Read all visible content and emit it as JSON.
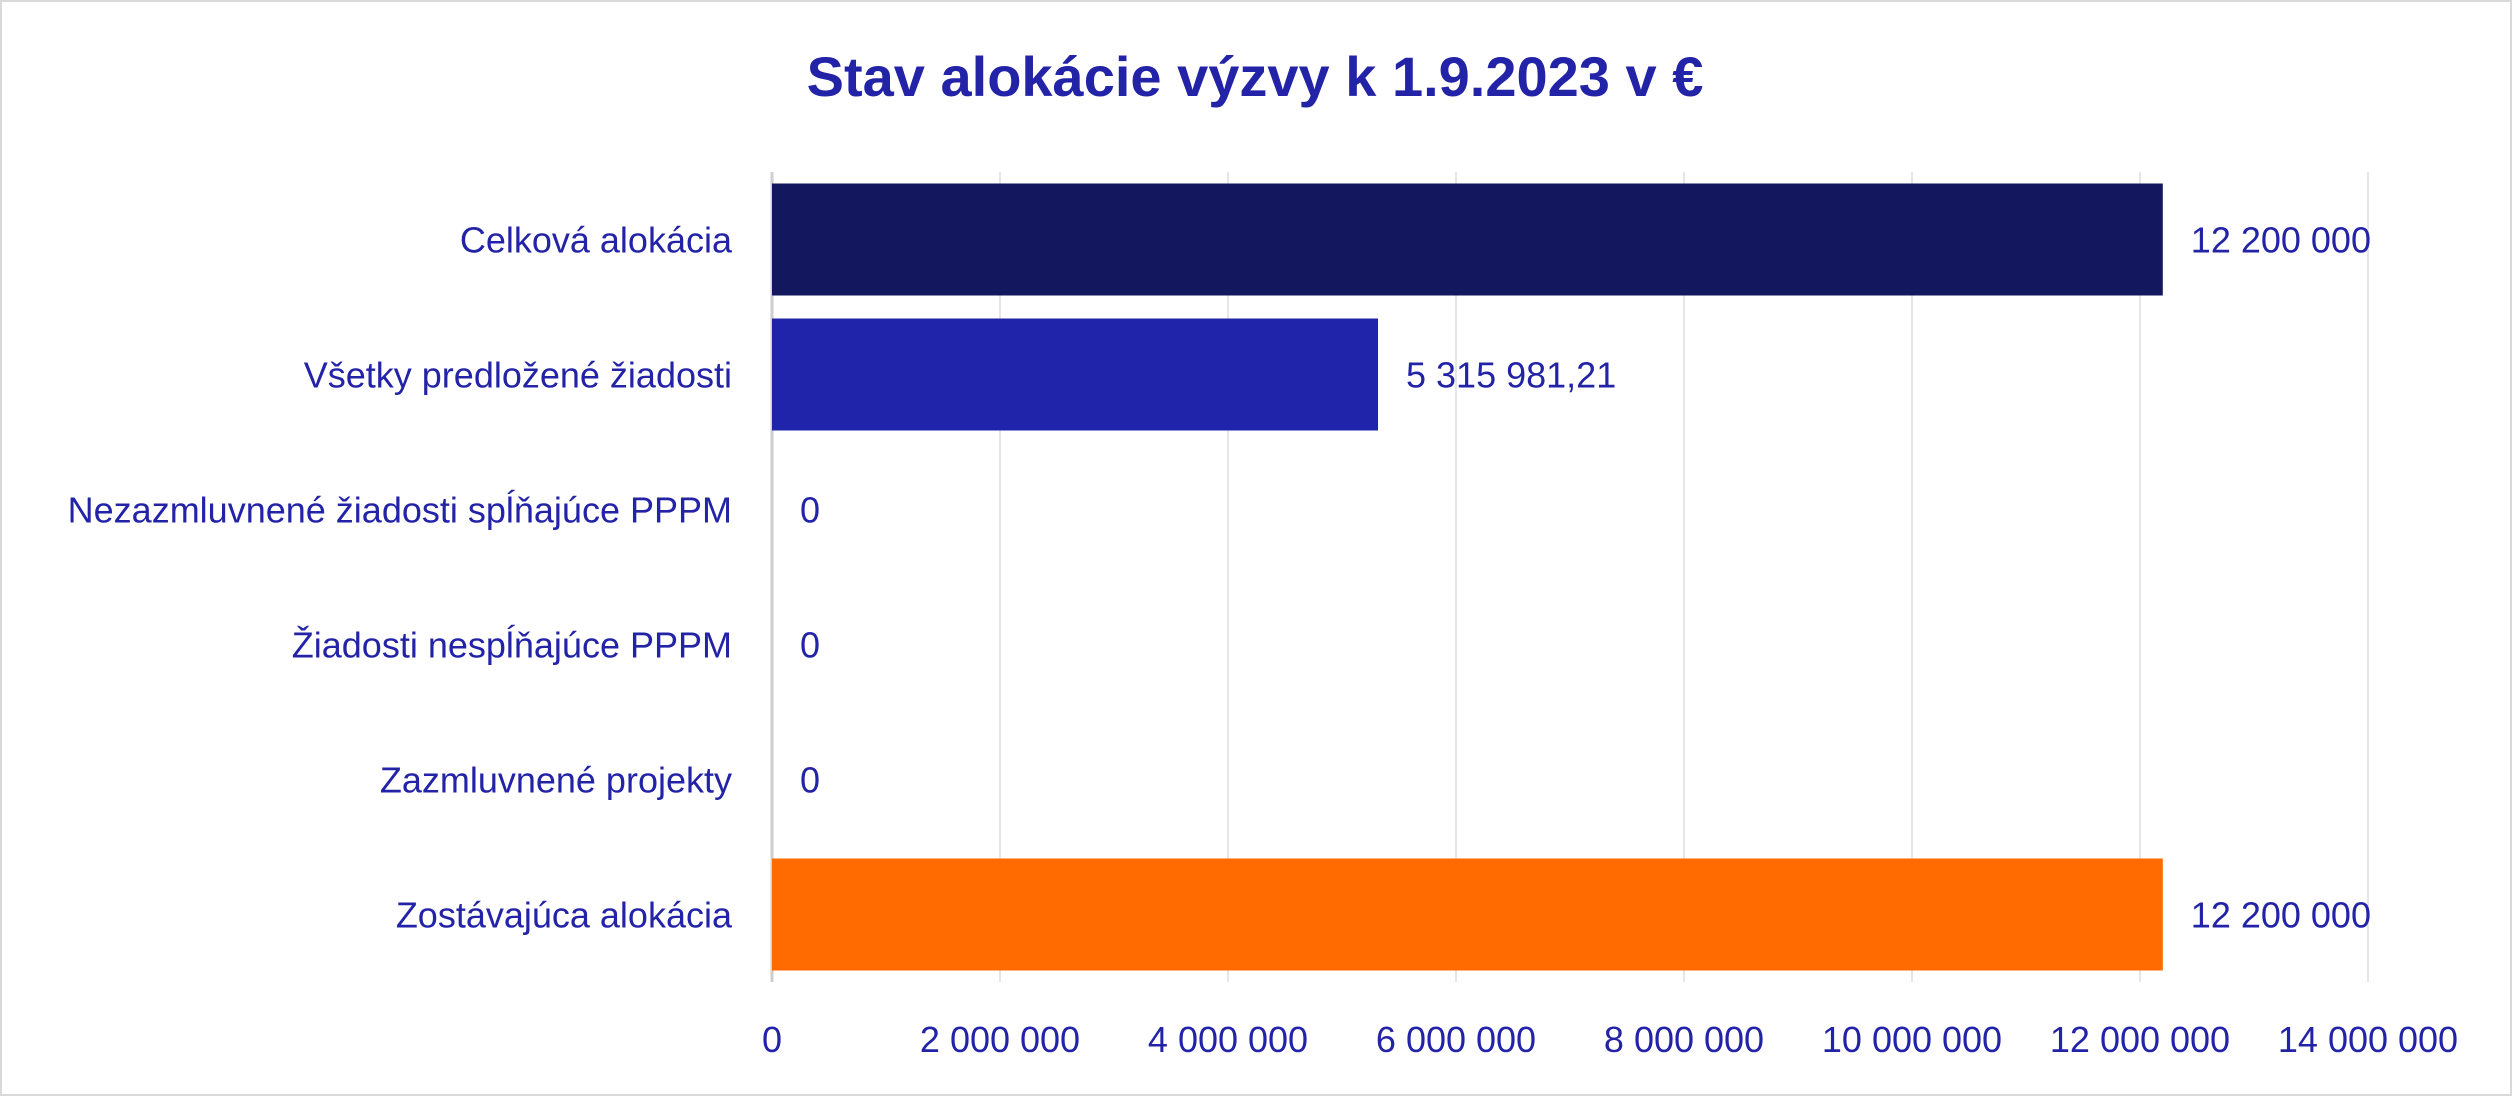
{
  "colors": {
    "text": "#2323a8",
    "grid": "#e6e6e6",
    "axis": "#cfcfcf"
  },
  "chart_data": {
    "type": "bar",
    "orientation": "horizontal",
    "title": "Stav alokácie výzvy k 1.9.2023 v €",
    "categories": [
      "Celková alokácia",
      "Všetky predložené žiadosti",
      "Nezazmluvnené žiadosti spĺňajúce PPPM",
      "Žiadosti nespĺňajúce PPPM",
      "Zazmluvnené projekty",
      "Zostávajúca alokácia"
    ],
    "values": [
      12200000,
      5315981.21,
      0,
      0,
      0,
      12200000
    ],
    "data_labels": [
      "12 200 000",
      "5 315 981,21",
      "0",
      "0",
      "0",
      "12 200 000"
    ],
    "bar_colors": [
      "#13175e",
      "#1f24aa",
      "#1f24aa",
      "#1f24aa",
      "#1f24aa",
      "#ff6b00"
    ],
    "xlim": [
      0,
      14000000
    ],
    "xticks": [
      0,
      2000000,
      4000000,
      6000000,
      8000000,
      10000000,
      12000000,
      14000000
    ],
    "xtick_labels": [
      "0",
      "2 000 000",
      "4 000 000",
      "6 000 000",
      "8 000 000",
      "10 000 000",
      "12 000 000",
      "14 000 000"
    ],
    "grid": true,
    "legend": false
  }
}
